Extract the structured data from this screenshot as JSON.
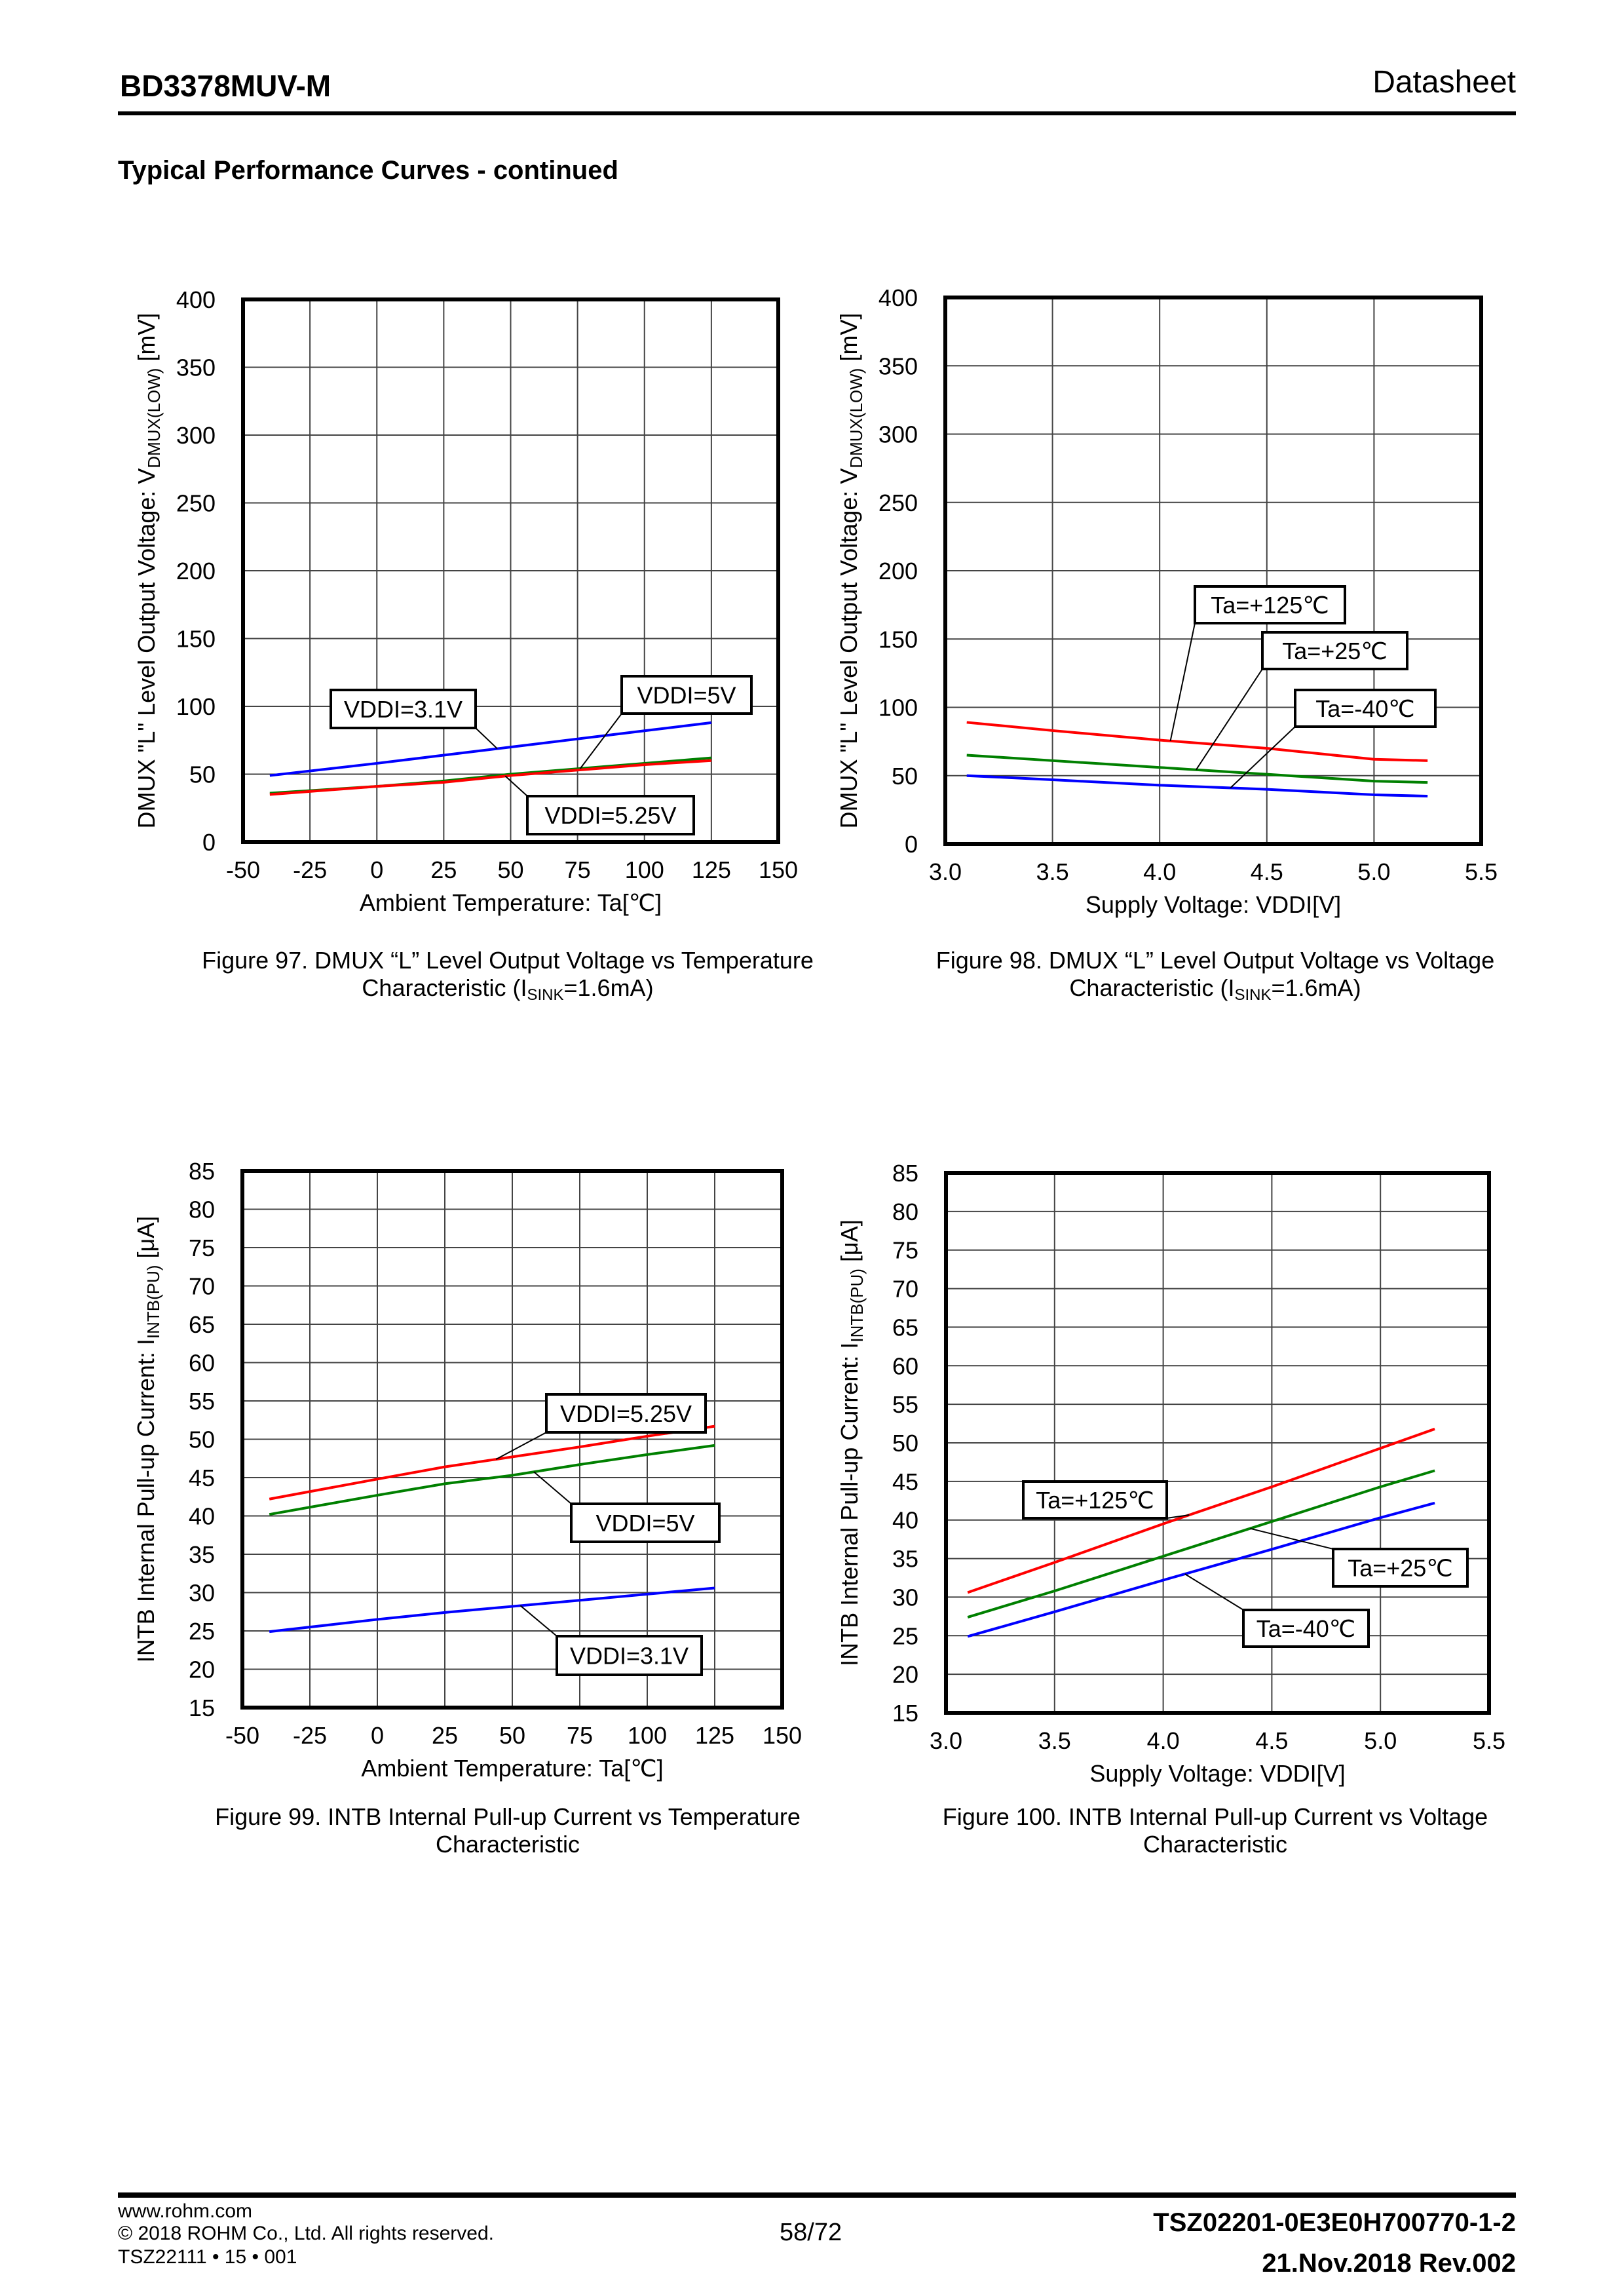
{
  "header": {
    "part_number": "BD3378MUV-M",
    "doc_type": "Datasheet"
  },
  "section_title": "Typical Performance Curves - continued",
  "footer": {
    "website": "www.rohm.com",
    "copyright": "© 2018 ROHM Co., Ltd. All rights reserved.",
    "form_code": "TSZ22111 • 15 • 001",
    "page": "58/72",
    "doc_number": "TSZ02201-0E3E0H700770-1-2",
    "revision": "21.Nov.2018 Rev.002"
  },
  "colors": {
    "red": "#ff0000",
    "green": "#008000",
    "blue": "#0000ff"
  },
  "chart_data": [
    {
      "id": "fig97",
      "type": "line",
      "caption_line1": "Figure 97. DMUX “L” Level Output Voltage vs Temperature",
      "caption_line2_pre": "Characteristic (I",
      "caption_line2_sub": "SINK",
      "caption_line2_post": "=1.6mA)",
      "xlabel": "Ambient Temperature: Ta[℃]",
      "ylabel_pre": "DMUX \"L\" Level Output Voltage: V",
      "ylabel_sub": "DMUX(LOW)",
      "ylabel_post": " [mV]",
      "xlim": [
        -50,
        150
      ],
      "ylim": [
        0,
        400
      ],
      "xticks": [
        -50,
        -25,
        0,
        25,
        50,
        75,
        100,
        125,
        150
      ],
      "yticks": [
        0,
        50,
        100,
        150,
        200,
        250,
        300,
        350,
        400
      ],
      "xtick_labels": [
        "-50",
        "-25",
        "0",
        "25",
        "50",
        "75",
        "100",
        "125",
        "150"
      ],
      "ytick_labels": [
        "0",
        "50",
        "100",
        "150",
        "200",
        "250",
        "300",
        "350",
        "400"
      ],
      "grid": true,
      "series": [
        {
          "name": "VDDI=3.1V",
          "color": "#0000ff",
          "x": [
            -40,
            0,
            25,
            50,
            75,
            100,
            125
          ],
          "y": [
            49,
            58,
            64,
            70,
            76,
            82,
            88
          ]
        },
        {
          "name": "VDDI=5V",
          "color": "#008000",
          "x": [
            -40,
            0,
            25,
            50,
            75,
            100,
            125
          ],
          "y": [
            36,
            41,
            45,
            50,
            54,
            58,
            62
          ]
        },
        {
          "name": "VDDI=5.25V",
          "color": "#ff0000",
          "x": [
            -40,
            0,
            25,
            50,
            75,
            100,
            125
          ],
          "y": [
            35,
            41,
            44,
            49,
            53,
            57,
            60
          ]
        }
      ],
      "annotations": [
        {
          "text": "VDDI=3.1V",
          "series": 0,
          "at_x": 45
        },
        {
          "text": "VDDI=5V",
          "series": 1,
          "at_x": 76
        },
        {
          "text": "VDDI=5.25V",
          "series": 2,
          "at_x": 48
        }
      ]
    },
    {
      "id": "fig98",
      "type": "line",
      "caption_line1": "Figure 98. DMUX “L” Level Output Voltage vs Voltage",
      "caption_line2_pre": "Characteristic (I",
      "caption_line2_sub": "SINK",
      "caption_line2_post": "=1.6mA)",
      "xlabel": "Supply Voltage: VDDI[V]",
      "ylabel_pre": "DMUX \"L\" Level Output Voltage: V",
      "ylabel_sub": "DMUX(LOW)",
      "ylabel_post": " [mV]",
      "xlim": [
        3.0,
        5.5
      ],
      "ylim": [
        0,
        400
      ],
      "xticks": [
        3.0,
        3.5,
        4.0,
        4.5,
        5.0,
        5.5
      ],
      "yticks": [
        0,
        50,
        100,
        150,
        200,
        250,
        300,
        350,
        400
      ],
      "xtick_labels": [
        "3.0",
        "3.5",
        "4.0",
        "4.5",
        "5.0",
        "5.5"
      ],
      "ytick_labels": [
        "0",
        "50",
        "100",
        "150",
        "200",
        "250",
        "300",
        "350",
        "400"
      ],
      "grid": true,
      "series": [
        {
          "name": "Ta=+125℃",
          "color": "#ff0000",
          "x": [
            3.1,
            3.5,
            4.0,
            4.5,
            5.0,
            5.25
          ],
          "y": [
            89,
            83,
            76,
            70,
            62,
            61
          ]
        },
        {
          "name": "Ta=+25℃",
          "color": "#008000",
          "x": [
            3.1,
            3.5,
            4.0,
            4.5,
            5.0,
            5.25
          ],
          "y": [
            65,
            61,
            56,
            51,
            46,
            45
          ]
        },
        {
          "name": "Ta=-40℃",
          "color": "#0000ff",
          "x": [
            3.1,
            3.5,
            4.0,
            4.5,
            5.0,
            5.25
          ],
          "y": [
            50,
            47,
            43,
            40,
            36,
            35
          ]
        }
      ],
      "annotations": [
        {
          "text": "Ta=+125℃",
          "series": 0,
          "at_x": 4.05
        },
        {
          "text": "Ta=+25℃",
          "series": 1,
          "at_x": 4.17
        },
        {
          "text": "Ta=-40℃",
          "series": 2,
          "at_x": 4.33
        }
      ]
    },
    {
      "id": "fig99",
      "type": "line",
      "caption_line1": "Figure 99. INTB Internal Pull-up Current vs Temperature",
      "caption_line2_pre": "Characteristic",
      "caption_line2_sub": "",
      "caption_line2_post": "",
      "xlabel": "Ambient Temperature: Ta[℃]",
      "ylabel_pre": "INTB Internal Pull-up Current: I",
      "ylabel_sub": "INTB(PU)",
      "ylabel_post": " [μA]",
      "xlim": [
        -50,
        150
      ],
      "ylim": [
        15,
        85
      ],
      "xticks": [
        -50,
        -25,
        0,
        25,
        50,
        75,
        100,
        125,
        150
      ],
      "yticks": [
        15,
        20,
        25,
        30,
        35,
        40,
        45,
        50,
        55,
        60,
        65,
        70,
        75,
        80,
        85
      ],
      "xtick_labels": [
        "-50",
        "-25",
        "0",
        "25",
        "50",
        "75",
        "100",
        "125",
        "150"
      ],
      "ytick_labels": [
        "15",
        "20",
        "25",
        "30",
        "35",
        "40",
        "45",
        "50",
        "55",
        "60",
        "65",
        "70",
        "75",
        "80",
        "85"
      ],
      "grid": true,
      "series": [
        {
          "name": "VDDI=5.25V",
          "color": "#ff0000",
          "x": [
            -40,
            0,
            25,
            50,
            75,
            100,
            125
          ],
          "y": [
            42.2,
            44.8,
            46.4,
            47.7,
            49.0,
            50.4,
            51.7
          ]
        },
        {
          "name": "VDDI=5V",
          "color": "#008000",
          "x": [
            -40,
            0,
            25,
            50,
            75,
            100,
            125
          ],
          "y": [
            40.2,
            42.7,
            44.2,
            45.3,
            46.7,
            48.0,
            49.2
          ]
        },
        {
          "name": "VDDI=3.1V",
          "color": "#0000ff",
          "x": [
            -40,
            0,
            25,
            50,
            75,
            100,
            125
          ],
          "y": [
            24.9,
            26.5,
            27.4,
            28.2,
            29.0,
            29.8,
            30.6
          ]
        }
      ],
      "annotations": [
        {
          "text": "VDDI=5.25V",
          "series": 0,
          "at_x": 44
        },
        {
          "text": "VDDI=5V",
          "series": 1,
          "at_x": 58
        },
        {
          "text": "VDDI=3.1V",
          "series": 2,
          "at_x": 53
        }
      ]
    },
    {
      "id": "fig100",
      "type": "line",
      "caption_line1": "Figure 100. INTB Internal Pull-up Current vs Voltage",
      "caption_line2_pre": "Characteristic",
      "caption_line2_sub": "",
      "caption_line2_post": "",
      "xlabel": "Supply Voltage: VDDI[V]",
      "ylabel_pre": "INTB Internal Pull-up Current: I",
      "ylabel_sub": "INTB(PU)",
      "ylabel_post": " [μA]",
      "xlim": [
        3.0,
        5.5
      ],
      "ylim": [
        15,
        85
      ],
      "xticks": [
        3.0,
        3.5,
        4.0,
        4.5,
        5.0,
        5.5
      ],
      "yticks": [
        15,
        20,
        25,
        30,
        35,
        40,
        45,
        50,
        55,
        60,
        65,
        70,
        75,
        80,
        85
      ],
      "xtick_labels": [
        "3.0",
        "3.5",
        "4.0",
        "4.5",
        "5.0",
        "5.5"
      ],
      "ytick_labels": [
        "15",
        "20",
        "25",
        "30",
        "35",
        "40",
        "45",
        "50",
        "55",
        "60",
        "65",
        "70",
        "75",
        "80",
        "85"
      ],
      "grid": true,
      "series": [
        {
          "name": "Ta=+125℃",
          "color": "#ff0000",
          "x": [
            3.1,
            3.5,
            4.0,
            4.5,
            5.0,
            5.25
          ],
          "y": [
            30.6,
            34.5,
            39.5,
            44.3,
            49.3,
            51.8
          ]
        },
        {
          "name": "Ta=+25℃",
          "color": "#008000",
          "x": [
            3.1,
            3.5,
            4.0,
            4.5,
            5.0,
            5.25
          ],
          "y": [
            27.4,
            30.8,
            35.3,
            39.8,
            44.3,
            46.4
          ]
        },
        {
          "name": "Ta=-40℃",
          "color": "#0000ff",
          "x": [
            3.1,
            3.5,
            4.0,
            4.5,
            5.0,
            5.25
          ],
          "y": [
            24.9,
            28.1,
            32.2,
            36.2,
            40.3,
            42.2
          ]
        }
      ],
      "annotations": [
        {
          "text": "Ta=+125℃",
          "series": 0,
          "at_x": 4.12
        },
        {
          "text": "Ta=+25℃",
          "series": 1,
          "at_x": 4.4
        },
        {
          "text": "Ta=-40℃",
          "series": 2,
          "at_x": 4.1
        }
      ]
    }
  ]
}
